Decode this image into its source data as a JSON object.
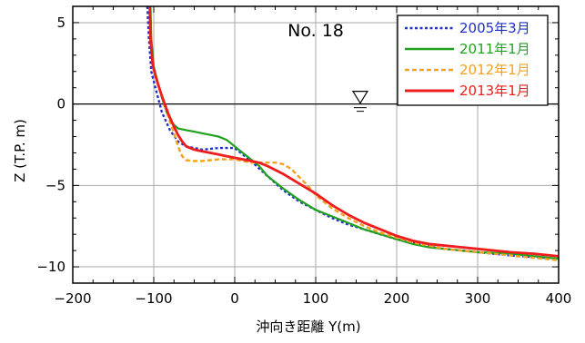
{
  "chart_data": {
    "type": "line",
    "title": "No. 18",
    "xlabel": "沖向き距離 Y(m)",
    "ylabel": "Z (T.P. m)",
    "xlim": [
      -200,
      400
    ],
    "ylim": [
      -11,
      6
    ],
    "xticks": [
      -200,
      -100,
      0,
      100,
      200,
      300,
      400
    ],
    "yticks": [
      5,
      0,
      -5,
      -10
    ],
    "grid": true,
    "legend_position": "top-right",
    "water_level_marker": {
      "x": 155,
      "y": 0
    },
    "series": [
      {
        "name": "2005年3月",
        "color": "#1f2fc8",
        "dash": "dotted",
        "points": [
          [
            -108,
            6
          ],
          [
            -106,
            4
          ],
          [
            -103,
            2
          ],
          [
            -98,
            1
          ],
          [
            -90,
            -0.5
          ],
          [
            -80,
            -1.6
          ],
          [
            -70,
            -2.3
          ],
          [
            -60,
            -2.6
          ],
          [
            -50,
            -2.7
          ],
          [
            -40,
            -2.8
          ],
          [
            -20,
            -2.7
          ],
          [
            0,
            -2.7
          ],
          [
            20,
            -3.5
          ],
          [
            40,
            -4.4
          ],
          [
            60,
            -5.3
          ],
          [
            80,
            -6.0
          ],
          [
            100,
            -6.5
          ],
          [
            120,
            -7.0
          ],
          [
            140,
            -7.4
          ],
          [
            160,
            -7.7
          ],
          [
            180,
            -8.0
          ],
          [
            200,
            -8.3
          ],
          [
            220,
            -8.55
          ],
          [
            240,
            -8.75
          ],
          [
            260,
            -8.9
          ],
          [
            280,
            -9.0
          ],
          [
            300,
            -9.1
          ],
          [
            340,
            -9.3
          ],
          [
            370,
            -9.4
          ],
          [
            400,
            -9.5
          ]
        ]
      },
      {
        "name": "2011年1月",
        "color": "#1fa01f",
        "dash": "solid",
        "points": [
          [
            -104,
            6
          ],
          [
            -103,
            4
          ],
          [
            -100,
            2.3
          ],
          [
            -96,
            1.5
          ],
          [
            -90,
            0.4
          ],
          [
            -84,
            -0.5
          ],
          [
            -77,
            -1.2
          ],
          [
            -70,
            -1.5
          ],
          [
            -60,
            -1.6
          ],
          [
            -50,
            -1.7
          ],
          [
            -40,
            -1.8
          ],
          [
            -30,
            -1.9
          ],
          [
            -20,
            -2.0
          ],
          [
            -10,
            -2.2
          ],
          [
            0,
            -2.6
          ],
          [
            10,
            -3.0
          ],
          [
            20,
            -3.4
          ],
          [
            30,
            -3.8
          ],
          [
            40,
            -4.4
          ],
          [
            60,
            -5.2
          ],
          [
            80,
            -5.9
          ],
          [
            100,
            -6.5
          ],
          [
            120,
            -6.9
          ],
          [
            140,
            -7.3
          ],
          [
            160,
            -7.7
          ],
          [
            180,
            -8.0
          ],
          [
            200,
            -8.3
          ],
          [
            220,
            -8.6
          ],
          [
            240,
            -8.8
          ],
          [
            260,
            -8.9
          ],
          [
            280,
            -9.0
          ],
          [
            300,
            -9.1
          ],
          [
            340,
            -9.2
          ],
          [
            370,
            -9.35
          ],
          [
            400,
            -9.5
          ]
        ]
      },
      {
        "name": "2012年1月",
        "color": "#f5a020",
        "dash": "dashed",
        "points": [
          [
            -105,
            6
          ],
          [
            -104,
            4
          ],
          [
            -101,
            2.3
          ],
          [
            -96,
            1.5
          ],
          [
            -90,
            0.5
          ],
          [
            -82,
            -0.8
          ],
          [
            -75,
            -1.8
          ],
          [
            -70,
            -2.6
          ],
          [
            -65,
            -3.2
          ],
          [
            -60,
            -3.45
          ],
          [
            -50,
            -3.5
          ],
          [
            -40,
            -3.5
          ],
          [
            -30,
            -3.45
          ],
          [
            -20,
            -3.4
          ],
          [
            -10,
            -3.4
          ],
          [
            0,
            -3.4
          ],
          [
            10,
            -3.5
          ],
          [
            20,
            -3.6
          ],
          [
            30,
            -3.6
          ],
          [
            40,
            -3.6
          ],
          [
            50,
            -3.6
          ],
          [
            60,
            -3.7
          ],
          [
            70,
            -4.0
          ],
          [
            80,
            -4.5
          ],
          [
            90,
            -5.0
          ],
          [
            100,
            -5.6
          ],
          [
            120,
            -6.4
          ],
          [
            140,
            -7.0
          ],
          [
            160,
            -7.5
          ],
          [
            180,
            -7.9
          ],
          [
            200,
            -8.2
          ],
          [
            220,
            -8.5
          ],
          [
            240,
            -8.7
          ],
          [
            260,
            -8.9
          ],
          [
            280,
            -9.0
          ],
          [
            300,
            -9.1
          ],
          [
            340,
            -9.3
          ],
          [
            370,
            -9.45
          ],
          [
            400,
            -9.6
          ]
        ]
      },
      {
        "name": "2013年1月",
        "color": "#ee1c1c",
        "dash": "solid",
        "points": [
          [
            -105,
            6
          ],
          [
            -104,
            4
          ],
          [
            -101,
            2.3
          ],
          [
            -96,
            1.4
          ],
          [
            -90,
            0.5
          ],
          [
            -82,
            -0.6
          ],
          [
            -75,
            -1.4
          ],
          [
            -70,
            -1.9
          ],
          [
            -65,
            -2.3
          ],
          [
            -60,
            -2.6
          ],
          [
            -50,
            -2.8
          ],
          [
            -40,
            -2.9
          ],
          [
            -30,
            -3.0
          ],
          [
            -20,
            -3.1
          ],
          [
            -10,
            -3.2
          ],
          [
            0,
            -3.3
          ],
          [
            10,
            -3.4
          ],
          [
            20,
            -3.5
          ],
          [
            30,
            -3.6
          ],
          [
            40,
            -3.8
          ],
          [
            60,
            -4.3
          ],
          [
            80,
            -4.9
          ],
          [
            100,
            -5.5
          ],
          [
            120,
            -6.2
          ],
          [
            140,
            -6.8
          ],
          [
            160,
            -7.3
          ],
          [
            180,
            -7.7
          ],
          [
            200,
            -8.1
          ],
          [
            220,
            -8.4
          ],
          [
            240,
            -8.6
          ],
          [
            260,
            -8.7
          ],
          [
            280,
            -8.8
          ],
          [
            300,
            -8.9
          ],
          [
            340,
            -9.1
          ],
          [
            370,
            -9.2
          ],
          [
            400,
            -9.35
          ]
        ]
      }
    ]
  }
}
